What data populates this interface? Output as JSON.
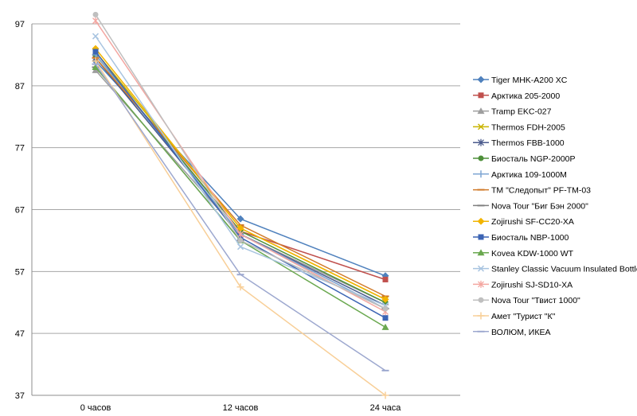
{
  "chart_data": {
    "type": "line",
    "title": "",
    "xlabel": "",
    "ylabel": "",
    "categories": [
      "0 часов",
      "12 часов",
      "24 часа"
    ],
    "ylim": [
      37,
      97
    ],
    "yticks": [
      37,
      47,
      57,
      67,
      77,
      87,
      97
    ],
    "grid": true,
    "legend_position": "right",
    "series": [
      {
        "name": "Tiger MHK-A200 XC",
        "values": [
          91,
          65.5,
          56.3
        ],
        "color": "#4f81bd",
        "marker": "diamond"
      },
      {
        "name": "Арктика 205-2000",
        "values": [
          92,
          63.5,
          55.7
        ],
        "color": "#c0504d",
        "marker": "square"
      },
      {
        "name": "Tramp EKC-027",
        "values": [
          89.5,
          63,
          52
        ],
        "color": "#9e9e9e",
        "marker": "triangle"
      },
      {
        "name": "Thermos FDH-2005",
        "values": [
          92.5,
          64,
          52.5
        ],
        "color": "#c9b400",
        "marker": "x"
      },
      {
        "name": "Thermos FBB-1000",
        "values": [
          91.5,
          63,
          51.5
        ],
        "color": "#4a5a8c",
        "marker": "star"
      },
      {
        "name": "Биосталь NGP-2000P",
        "values": [
          92,
          63.5,
          52
        ],
        "color": "#4e8f3a",
        "marker": "circle"
      },
      {
        "name": "Арктика 109-1000M",
        "values": [
          92,
          63,
          51
        ],
        "color": "#7ea6d3",
        "marker": "plus"
      },
      {
        "name": "ТМ \"Следопыт\" PF-TM-03",
        "values": [
          91.5,
          64.5,
          53
        ],
        "color": "#d07a2a",
        "marker": "dash"
      },
      {
        "name": "Nova Tour \"Биг Бэн 2000\"",
        "values": [
          90,
          62,
          51
        ],
        "color": "#7f7f7f",
        "marker": "dash"
      },
      {
        "name": "Zojirushi SF-CC20-XA",
        "values": [
          93,
          64,
          52.5
        ],
        "color": "#f2b400",
        "marker": "diamond"
      },
      {
        "name": "Биосталь NBP-1000",
        "values": [
          92.5,
          62.5,
          49.5
        ],
        "color": "#3c64b4",
        "marker": "square"
      },
      {
        "name": "Kovea KDW-1000 WT",
        "values": [
          90,
          62,
          48
        ],
        "color": "#6aa84f",
        "marker": "triangle"
      },
      {
        "name": "Stanley Classic Vacuum Insulated Bottle",
        "values": [
          95,
          61,
          51.5
        ],
        "color": "#a8c4e0",
        "marker": "x"
      },
      {
        "name": "Zojirushi SJ-SD10-XA",
        "values": [
          97.5,
          63,
          50.5
        ],
        "color": "#f4a6a0",
        "marker": "star"
      },
      {
        "name": "Nova Tour \"Твист 1000\"",
        "values": [
          98.5,
          62,
          51
        ],
        "color": "#bfbfbf",
        "marker": "circle"
      },
      {
        "name": "Амет \"Турист \"К\"",
        "values": [
          91,
          54.5,
          37
        ],
        "color": "#f8cf98",
        "marker": "plus"
      },
      {
        "name": "ВОЛЮМ, ИКЕА",
        "values": [
          90.5,
          56.5,
          41
        ],
        "color": "#9da8cf",
        "marker": "dash"
      }
    ]
  }
}
